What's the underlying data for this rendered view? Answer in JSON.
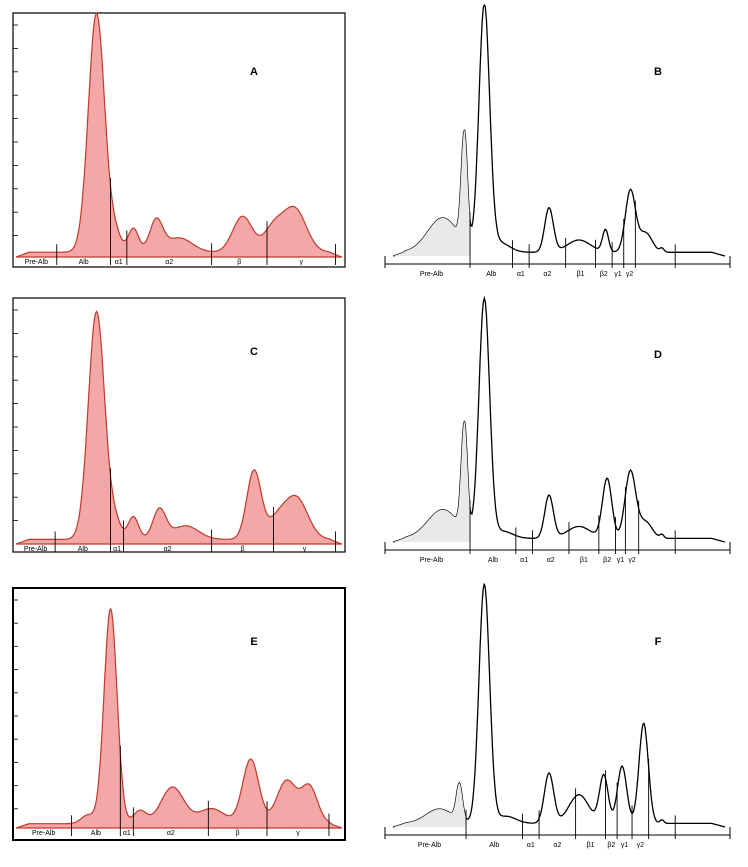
{
  "figure": {
    "panels": [
      {
        "letter": "A",
        "style": "filled",
        "fractions": [
          "Pre-Alb",
          "Alb",
          "α1",
          "α2",
          "β",
          "γ"
        ],
        "baseline": 0.02,
        "peaks": [
          {
            "x": 0.247,
            "h": 1.0,
            "w": 0.025
          },
          {
            "x": 0.305,
            "h": 0.07,
            "w": 0.018
          },
          {
            "x": 0.36,
            "h": 0.1,
            "w": 0.016
          },
          {
            "x": 0.43,
            "h": 0.13,
            "w": 0.02
          },
          {
            "x": 0.5,
            "h": 0.06,
            "w": 0.04
          },
          {
            "x": 0.695,
            "h": 0.15,
            "w": 0.03
          },
          {
            "x": 0.855,
            "h": 0.18,
            "w": 0.035
          },
          {
            "x": 0.79,
            "h": 0.1,
            "w": 0.03
          }
        ],
        "dividers": [
          0.125,
          0.29,
          0.34,
          0.6,
          0.77,
          0.98
        ]
      },
      {
        "letter": "B",
        "style": "line",
        "fractions": [
          "Pre-Alb",
          "Alb",
          "α1",
          "α2",
          "β1",
          "β2",
          "γ1",
          "γ2"
        ],
        "baseline": 0.015,
        "peaks": [
          {
            "x": 0.15,
            "h": 0.14,
            "w": 0.045
          },
          {
            "x": 0.215,
            "h": 0.45,
            "w": 0.009
          },
          {
            "x": 0.275,
            "h": 1.0,
            "w": 0.016
          },
          {
            "x": 0.32,
            "h": 0.04,
            "w": 0.03
          },
          {
            "x": 0.47,
            "h": 0.18,
            "w": 0.013
          },
          {
            "x": 0.56,
            "h": 0.05,
            "w": 0.035
          },
          {
            "x": 0.64,
            "h": 0.09,
            "w": 0.009
          },
          {
            "x": 0.715,
            "h": 0.25,
            "w": 0.015
          },
          {
            "x": 0.76,
            "h": 0.08,
            "w": 0.02
          },
          {
            "x": 0.81,
            "h": 0.015,
            "w": 0.006
          }
        ],
        "dividers": [
          0.232,
          0.36,
          0.41,
          0.52,
          0.61,
          0.66,
          0.695,
          0.73,
          0.85
        ]
      },
      {
        "letter": "C",
        "style": "filled",
        "fractions": [
          "Pre-Alb",
          "Alb",
          "α1",
          "α2",
          "β",
          "γ"
        ],
        "baseline": 0.02,
        "peaks": [
          {
            "x": 0.247,
            "h": 1.0,
            "w": 0.025
          },
          {
            "x": 0.305,
            "h": 0.07,
            "w": 0.018
          },
          {
            "x": 0.36,
            "h": 0.1,
            "w": 0.016
          },
          {
            "x": 0.44,
            "h": 0.13,
            "w": 0.02
          },
          {
            "x": 0.52,
            "h": 0.06,
            "w": 0.04
          },
          {
            "x": 0.73,
            "h": 0.3,
            "w": 0.022
          },
          {
            "x": 0.86,
            "h": 0.18,
            "w": 0.035
          },
          {
            "x": 0.8,
            "h": 0.08,
            "w": 0.03
          }
        ],
        "dividers": [
          0.12,
          0.29,
          0.33,
          0.6,
          0.79,
          0.98
        ]
      },
      {
        "letter": "D",
        "style": "line",
        "fractions": [
          "Pre-Alb",
          "Alb",
          "α1",
          "α2",
          "β1",
          "β2",
          "γ1",
          "γ2"
        ],
        "baseline": 0.015,
        "peaks": [
          {
            "x": 0.15,
            "h": 0.12,
            "w": 0.045
          },
          {
            "x": 0.215,
            "h": 0.45,
            "w": 0.009
          },
          {
            "x": 0.275,
            "h": 1.0,
            "w": 0.016
          },
          {
            "x": 0.33,
            "h": 0.03,
            "w": 0.03
          },
          {
            "x": 0.47,
            "h": 0.18,
            "w": 0.013
          },
          {
            "x": 0.56,
            "h": 0.05,
            "w": 0.035
          },
          {
            "x": 0.645,
            "h": 0.25,
            "w": 0.014
          },
          {
            "x": 0.715,
            "h": 0.28,
            "w": 0.016
          },
          {
            "x": 0.76,
            "h": 0.07,
            "w": 0.02
          },
          {
            "x": 0.81,
            "h": 0.015,
            "w": 0.006
          }
        ],
        "dividers": [
          0.232,
          0.37,
          0.42,
          0.53,
          0.62,
          0.67,
          0.7,
          0.74,
          0.85
        ]
      },
      {
        "letter": "E",
        "style": "filled",
        "fractions": [
          "Pre-Alb",
          "Alb",
          "α1",
          "α2",
          "β",
          "γ"
        ],
        "baseline": 0.02,
        "peaks": [
          {
            "x": 0.29,
            "h": 1.0,
            "w": 0.02
          },
          {
            "x": 0.22,
            "h": 0.04,
            "w": 0.02
          },
          {
            "x": 0.38,
            "h": 0.06,
            "w": 0.02
          },
          {
            "x": 0.48,
            "h": 0.17,
            "w": 0.035
          },
          {
            "x": 0.6,
            "h": 0.07,
            "w": 0.04
          },
          {
            "x": 0.72,
            "h": 0.3,
            "w": 0.025
          },
          {
            "x": 0.83,
            "h": 0.2,
            "w": 0.03
          },
          {
            "x": 0.9,
            "h": 0.17,
            "w": 0.025
          }
        ],
        "dividers": [
          0.17,
          0.32,
          0.36,
          0.59,
          0.77,
          0.96
        ]
      },
      {
        "letter": "F",
        "style": "line",
        "fractions": [
          "Pre-Alb",
          "Alb",
          "α1",
          "α2",
          "β1",
          "β2",
          "γ1",
          "γ2"
        ],
        "baseline": 0.015,
        "peaks": [
          {
            "x": 0.14,
            "h": 0.06,
            "w": 0.04
          },
          {
            "x": 0.2,
            "h": 0.15,
            "w": 0.009
          },
          {
            "x": 0.275,
            "h": 1.0,
            "w": 0.016
          },
          {
            "x": 0.34,
            "h": 0.03,
            "w": 0.03
          },
          {
            "x": 0.47,
            "h": 0.21,
            "w": 0.014
          },
          {
            "x": 0.56,
            "h": 0.12,
            "w": 0.03
          },
          {
            "x": 0.635,
            "h": 0.2,
            "w": 0.013
          },
          {
            "x": 0.69,
            "h": 0.24,
            "w": 0.014
          },
          {
            "x": 0.755,
            "h": 0.42,
            "w": 0.014
          },
          {
            "x": 0.81,
            "h": 0.015,
            "w": 0.006
          }
        ],
        "dividers": [
          0.22,
          0.39,
          0.44,
          0.55,
          0.64,
          0.675,
          0.72,
          0.77,
          0.85
        ]
      }
    ]
  },
  "chart_data": [
    {
      "type": "area",
      "panel": "A",
      "categories": [
        "Pre-Alb",
        "Alb",
        "α1",
        "α2",
        "β",
        "γ"
      ],
      "peak_heights_relative": [
        0.02,
        1.0,
        0.1,
        0.13,
        0.15,
        0.18
      ]
    },
    {
      "type": "line",
      "panel": "B",
      "categories": [
        "Pre-Alb",
        "Alb",
        "α1",
        "α2",
        "β1",
        "β2",
        "γ1",
        "γ2"
      ],
      "peak_heights_relative": [
        0.45,
        1.0,
        0.04,
        0.18,
        0.05,
        0.09,
        0.25,
        0.08
      ]
    },
    {
      "type": "area",
      "panel": "C",
      "categories": [
        "Pre-Alb",
        "Alb",
        "α1",
        "α2",
        "β",
        "γ"
      ],
      "peak_heights_relative": [
        0.02,
        1.0,
        0.1,
        0.13,
        0.3,
        0.18
      ]
    },
    {
      "type": "line",
      "panel": "D",
      "categories": [
        "Pre-Alb",
        "Alb",
        "α1",
        "α2",
        "β1",
        "β2",
        "γ1",
        "γ2"
      ],
      "peak_heights_relative": [
        0.45,
        1.0,
        0.03,
        0.18,
        0.05,
        0.25,
        0.28,
        0.07
      ]
    },
    {
      "type": "area",
      "panel": "E",
      "categories": [
        "Pre-Alb",
        "Alb",
        "α1",
        "α2",
        "β",
        "γ"
      ],
      "peak_heights_relative": [
        0.04,
        1.0,
        0.06,
        0.17,
        0.3,
        0.2
      ]
    },
    {
      "type": "line",
      "panel": "F",
      "categories": [
        "Pre-Alb",
        "Alb",
        "α1",
        "α2",
        "β1",
        "β2",
        "γ1",
        "γ2"
      ],
      "peak_heights_relative": [
        0.15,
        1.0,
        0.03,
        0.21,
        0.12,
        0.2,
        0.24,
        0.42
      ]
    }
  ]
}
